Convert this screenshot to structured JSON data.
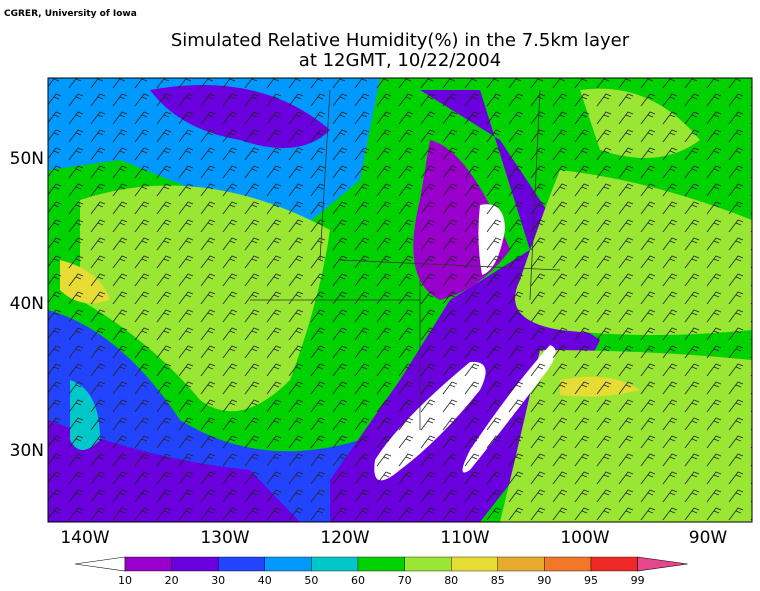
{
  "header": {
    "credit": "CGRER, University of Iowa",
    "title": "Simulated Relative Humidity(%) in the 7.5km layer",
    "subtitle": "at 12GMT, 10/22/2004"
  },
  "map": {
    "lon_labels": [
      "140W",
      "130W",
      "120W",
      "110W",
      "100W",
      "90W"
    ],
    "lat_labels": [
      "50N",
      "40N",
      "30N"
    ]
  },
  "legend": {
    "levels": [
      10,
      20,
      30,
      40,
      50,
      60,
      70,
      80,
      85,
      90,
      95,
      99
    ],
    "colors": [
      "#ffffff",
      "#9900cc",
      "#6a00dd",
      "#2244ff",
      "#0099ff",
      "#00c8c8",
      "#00d200",
      "#99e633",
      "#e6dc33",
      "#e6aa2d",
      "#f07828",
      "#f02828",
      "#e6468c"
    ]
  }
}
